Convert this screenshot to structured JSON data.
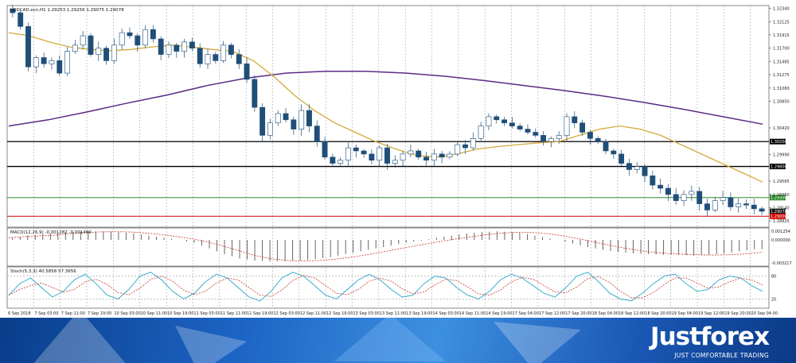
{
  "main_header": "USDCAD.ecn,H1  1.29253 1.29256 1.29075 1.29078",
  "macd_header": "MACD(12,26,9) -0.001282 -0.001460",
  "stoch_header": "Stoch(5,3,3) 40.5858 57.3656",
  "footer": {
    "brand": "Justforex",
    "tagline": "JUST COMFORTABLE TRADING"
  },
  "colors": {
    "sma_fast": "#d4a93a",
    "sma_slow": "#5b2a86",
    "macd_signal": "#c0392b",
    "stoch_main": "#2aa6c9",
    "stoch_signal": "#c0392b",
    "level_green": "#2e8b2e",
    "level_red": "#d60000"
  },
  "chart_data": [
    {
      "type": "line",
      "title": "USDCAD.ecn,H1",
      "y_ticks": [
        "1.32340",
        "1.32125",
        "1.31915",
        "1.31700",
        "1.31485",
        "1.31275",
        "1.31060",
        "1.30850",
        "1.30420",
        "1.29990",
        "1.29565",
        "1.29350",
        "1.29140",
        "1.28925"
      ],
      "ylim": [
        1.2885,
        1.3236
      ],
      "x_ticks": [
        "6 Sep 2018",
        "7 Sep 03:00",
        "7 Sep 11:00",
        "7 Sep 19:00",
        "10 Sep 03:00",
        "10 Sep 11:00",
        "10 Sep 19:00",
        "11 Sep 03:00",
        "11 Sep 11:00",
        "11 Sep 19:00",
        "12 Sep 03:00",
        "12 Sep 11:00",
        "12 Sep 19:00",
        "13 Sep 03:00",
        "13 Sep 11:00",
        "13 Sep 19:00",
        "14 Sep 03:00",
        "14 Sep 11:00",
        "14 Sep 19:00",
        "17 Sep 04:00",
        "17 Sep 12:00",
        "17 Sep 20:00",
        "18 Sep 04:00",
        "18 Sep 12:00",
        "18 Sep 20:00",
        "19 Sep 04:00",
        "19 Sep 12:00",
        "19 Sep 20:00",
        "20 Sep 04:00"
      ],
      "levels": [
        {
          "value": 1.302,
          "label": "1.30200",
          "style": "black"
        },
        {
          "value": 1.298,
          "label": "1.29800",
          "style": "black"
        },
        {
          "value": 1.293,
          "label": "1.29300",
          "style": "green"
        },
        {
          "value": 1.29078,
          "label": "1.29078",
          "style": "price"
        },
        {
          "value": 1.29,
          "label": "1.29000",
          "style": "red"
        }
      ],
      "close_series": [
        1.3227,
        1.3205,
        1.314,
        1.3155,
        1.3145,
        1.315,
        1.313,
        1.3165,
        1.3175,
        1.319,
        1.316,
        1.317,
        1.315,
        1.3175,
        1.3195,
        1.319,
        1.3175,
        1.32,
        1.3185,
        1.316,
        1.3175,
        1.3165,
        1.318,
        1.317,
        1.3145,
        1.316,
        1.315,
        1.3175,
        1.316,
        1.3145,
        1.312,
        1.3075,
        1.303,
        1.305,
        1.3065,
        1.3055,
        1.304,
        1.307,
        1.3045,
        1.302,
        1.2995,
        1.2985,
        1.299,
        1.301,
        1.3005,
        1.3,
        1.299,
        1.301,
        1.2985,
        1.299,
        1.3,
        1.3005,
        1.2995,
        1.299,
        1.3,
        1.2995,
        1.3,
        1.3015,
        1.301,
        1.3025,
        1.3045,
        1.306,
        1.3055,
        1.305,
        1.3045,
        1.304,
        1.3035,
        1.303,
        1.302,
        1.3025,
        1.303,
        1.306,
        1.305,
        1.3035,
        1.3025,
        1.302,
        1.3005,
        1.3,
        1.2985,
        1.2975,
        1.298,
        1.2965,
        1.295,
        1.2945,
        1.2935,
        1.2925,
        1.2935,
        1.294,
        1.292,
        1.291,
        1.2925,
        1.293,
        1.2915,
        1.292,
        1.2918,
        1.2912,
        1.2908
      ],
      "sma_fast_series": [
        1.3195,
        1.319,
        1.318,
        1.3172,
        1.3168,
        1.3166,
        1.3168,
        1.3172,
        1.3175,
        1.3172,
        1.3168,
        1.3165,
        1.315,
        1.3125,
        1.3095,
        1.307,
        1.305,
        1.3035,
        1.302,
        1.3008,
        1.2998,
        1.2995,
        1.3,
        1.3008,
        1.3012,
        1.3015,
        1.3018,
        1.302,
        1.303,
        1.304,
        1.3045,
        1.304,
        1.303,
        1.3015,
        1.3,
        1.2985,
        1.297,
        1.2955
      ],
      "sma_slow_series": [
        1.3045,
        1.3055,
        1.3068,
        1.3082,
        1.3095,
        1.311,
        1.3122,
        1.313,
        1.3133,
        1.3133,
        1.313,
        1.3125,
        1.3118,
        1.311,
        1.3102,
        1.3093,
        1.3083,
        1.3072,
        1.306,
        1.3048
      ],
      "series": [
        {
          "name": "USDCAD.ecn,H1"
        }
      ]
    },
    {
      "type": "bar",
      "title": "MACD(12,26,9)",
      "y_ticks": [
        "0.001254",
        "0.000000",
        "-0.003217"
      ],
      "ylim": [
        -0.00345,
        0.00145
      ],
      "values": [
        0.0003,
        0.0006,
        0.0008,
        0.001,
        0.0011,
        0.0012,
        0.0012,
        0.0011,
        0.0009,
        0.0006,
        0.0003,
        0.0,
        -0.0004,
        -0.0012,
        -0.002,
        -0.0026,
        -0.0029,
        -0.003,
        -0.003,
        -0.0029,
        -0.0027,
        -0.0024,
        -0.002,
        -0.0016,
        -0.0012,
        -0.0008,
        -0.0004,
        -0.0001,
        0.0003,
        0.0006,
        0.0009,
        0.0011,
        0.0012,
        0.0011,
        0.0008,
        0.0004,
        0.0,
        -0.0005,
        -0.001,
        -0.0014,
        -0.0017,
        -0.0019,
        -0.002,
        -0.0021,
        -0.0021,
        -0.0022,
        -0.0021,
        -0.0019,
        -0.0016,
        -0.0013
      ]
    },
    {
      "type": "line",
      "title": "Stoch(5,3,3)",
      "y_ticks": [
        "80",
        "20"
      ],
      "ylim": [
        0,
        100
      ],
      "series": [
        {
          "name": "Stoch(5,3,3)",
          "values": [
            30,
            60,
            75,
            50,
            25,
            40,
            70,
            85,
            60,
            30,
            20,
            45,
            80,
            90,
            70,
            40,
            20,
            35,
            65,
            85,
            75,
            50,
            25,
            15,
            40,
            75,
            90,
            80,
            55,
            30,
            20,
            45,
            70,
            85,
            70,
            45,
            25,
            30,
            60,
            80,
            75,
            50,
            30,
            20,
            40,
            70,
            85,
            75,
            55,
            35,
            25,
            50,
            80,
            90,
            65,
            35,
            20,
            15,
            35,
            60,
            80,
            85,
            60,
            40,
            45,
            70,
            80,
            75,
            55,
            40
          ]
        }
      ]
    }
  ]
}
